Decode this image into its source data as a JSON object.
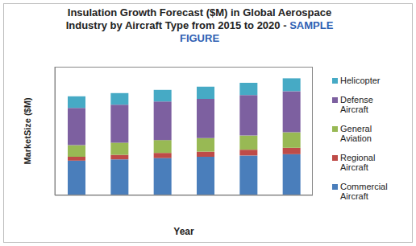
{
  "chart_data": {
    "type": "bar",
    "title": "Insulation Growth Forecast ($M) in Global Aerospace Industry by Aircraft Type from 2015 to 2020 -",
    "subtitle": "SAMPLE FIGURE",
    "xlabel": "Year",
    "ylabel": "MarketSize ($M)",
    "categories": [
      null,
      null,
      null,
      null,
      null,
      null
    ],
    "series": [
      {
        "name": "Commercial Aircraft",
        "color": "#4a7ebb",
        "values": [
          27,
          28,
          29,
          30,
          31,
          32
        ]
      },
      {
        "name": "Regional Aircraft",
        "color": "#be4b48",
        "values": [
          3,
          3.5,
          4,
          4,
          4.5,
          5
        ]
      },
      {
        "name": "General Aviation",
        "color": "#98b954",
        "values": [
          9,
          9.5,
          10,
          10.5,
          11,
          12
        ]
      },
      {
        "name": "Defense Aircraft",
        "color": "#7d60a0",
        "values": [
          29,
          29.5,
          30,
          30.5,
          31.5,
          32
        ]
      },
      {
        "name": "Helicopter",
        "color": "#46aac5",
        "values": [
          9,
          9,
          9,
          9.5,
          9.5,
          10
        ]
      }
    ],
    "ylim": [
      0,
      100
    ],
    "yticks": [],
    "stacked": true,
    "grid": false,
    "legend": "right",
    "tick_labels": false
  }
}
